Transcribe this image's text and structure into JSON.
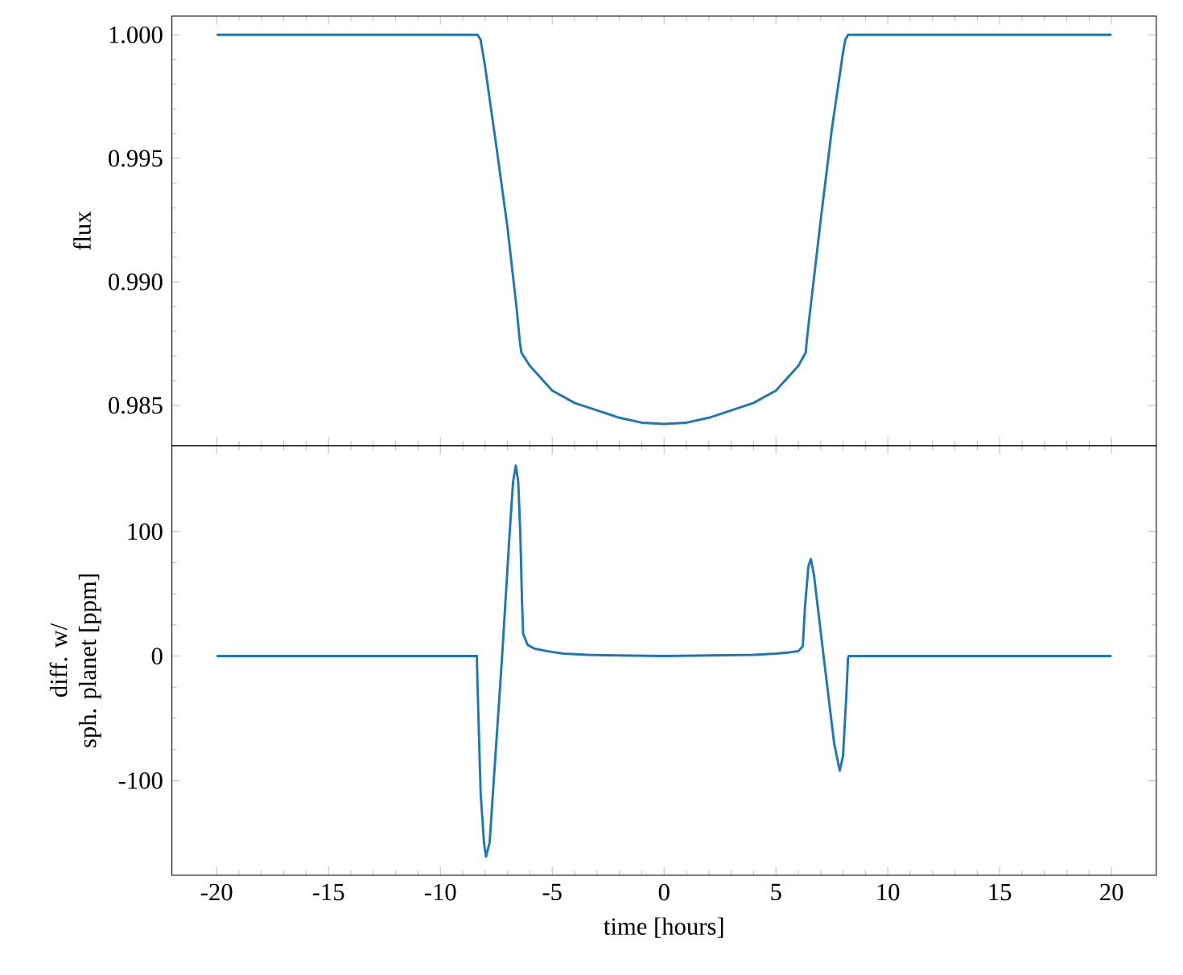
{
  "chart_data": [
    {
      "type": "line",
      "ylabel": "flux",
      "xlim": [
        -22,
        22
      ],
      "ylim": [
        0.98337,
        1.00076
      ],
      "xticks": [
        -20,
        -15,
        -10,
        -5,
        0,
        5,
        10,
        15,
        20
      ],
      "yticks": [
        0.985,
        {
          "value": 0.99,
          "label": "0.990"
        },
        0.995,
        {
          "value": 1.0,
          "label": "1.000"
        }
      ],
      "tick_labels": "y",
      "series": [
        {
          "color": "#1f77b4",
          "x": [
            -20,
            -8.34,
            -8.2,
            -8.0,
            -7.5,
            -7.0,
            -6.6,
            -6.45,
            -6.38,
            -6.0,
            -5.0,
            -4.0,
            -3.0,
            -2.0,
            -1.0,
            0,
            1.0,
            2.0,
            3.0,
            4.0,
            5.0,
            6.0,
            6.33,
            6.4,
            6.55,
            7.0,
            7.5,
            8.0,
            8.1,
            8.22,
            20
          ],
          "values": [
            1.0,
            1.0,
            0.9998,
            0.9987,
            0.9955,
            0.9922,
            0.989,
            0.9876,
            0.98714,
            0.9866,
            0.9856,
            0.9851,
            0.9848,
            0.9845,
            0.9843,
            0.98425,
            0.9843,
            0.9845,
            0.9848,
            0.9851,
            0.9856,
            0.9866,
            0.98714,
            0.9878,
            0.989,
            0.9925,
            0.9962,
            0.9993,
            0.9998,
            1.0,
            1.0
          ]
        }
      ]
    },
    {
      "type": "line",
      "xlabel": "time [hours]",
      "ylabel": "diff. w/\nsph. planet [ppm]",
      "xlim": [
        -22,
        22
      ],
      "ylim": [
        -176,
        169
      ],
      "xticks": [
        -20,
        -15,
        -10,
        -5,
        0,
        5,
        10,
        15,
        20
      ],
      "yticks": [
        -100,
        0,
        100
      ],
      "series": [
        {
          "color": "#1f77b4",
          "x": [
            -20,
            -8.37,
            -8.34,
            -8.2,
            -8.05,
            -7.96,
            -7.8,
            -7.24,
            -6.9,
            -6.75,
            -6.63,
            -6.52,
            -6.43,
            -6.35,
            -6.3,
            -6.1,
            -5.8,
            -5.23,
            -4.5,
            -3.4,
            -2,
            0,
            2,
            4,
            5,
            5.6,
            6.0,
            6.2,
            6.3,
            6.45,
            6.56,
            6.7,
            7.13,
            7.6,
            7.85,
            8.0,
            8.15,
            8.22,
            8.25,
            20
          ],
          "values": [
            0,
            0,
            -23,
            -110,
            -150,
            -161,
            -150,
            0,
            100,
            140,
            153,
            140,
            100,
            44,
            18,
            9,
            6,
            4,
            2,
            1,
            0.5,
            0,
            0.5,
            1,
            2,
            3,
            4,
            8,
            40,
            72,
            78,
            65,
            0,
            -70,
            -92,
            -80,
            -30,
            -2,
            0,
            0
          ]
        }
      ]
    }
  ]
}
